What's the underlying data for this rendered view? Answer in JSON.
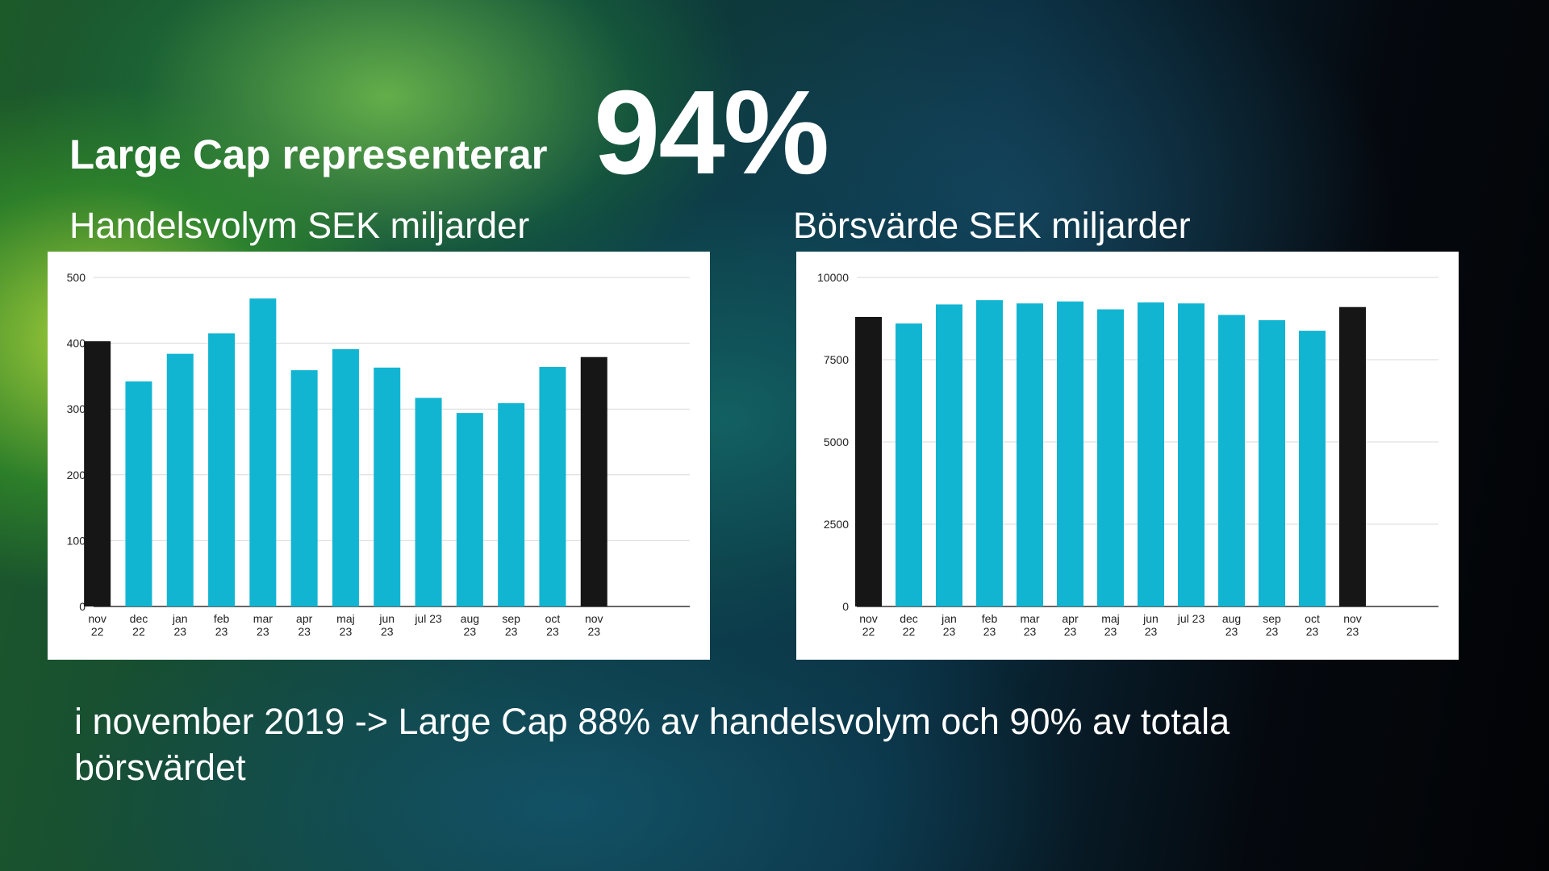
{
  "headline": {
    "prefix": "Large Cap representerar",
    "value": "94%"
  },
  "chart_data": [
    {
      "type": "bar",
      "title": "Handelsvolym SEK miljarder",
      "categories": [
        "nov\n22",
        "dec\n22",
        "jan\n23",
        "feb\n23",
        "mar\n23",
        "apr\n23",
        "maj\n23",
        "jun\n23",
        "jul 23",
        "aug\n23",
        "sep\n23",
        "oct\n23",
        "nov\n23"
      ],
      "values": [
        403,
        342,
        384,
        415,
        468,
        359,
        391,
        363,
        317,
        294,
        309,
        364,
        379
      ],
      "highlight": [
        0,
        12
      ],
      "ylim": [
        0,
        500
      ],
      "yticks": [
        0,
        100,
        200,
        300,
        400,
        500
      ],
      "grid": true,
      "colors": {
        "bar": "#12b5d1",
        "highlight": "#161616"
      }
    },
    {
      "type": "bar",
      "title": "Börsvärde SEK miljarder",
      "categories": [
        "nov\n22",
        "dec\n22",
        "jan\n23",
        "feb\n23",
        "mar\n23",
        "apr\n23",
        "maj\n23",
        "jun\n23",
        "jul 23",
        "aug\n23",
        "sep\n23",
        "oct\n23",
        "nov\n23"
      ],
      "values": [
        8800,
        8600,
        9180,
        9310,
        9210,
        9270,
        9030,
        9240,
        9210,
        8860,
        8700,
        8380,
        9100
      ],
      "highlight": [
        0,
        12
      ],
      "ylim": [
        0,
        10000
      ],
      "yticks": [
        0,
        2500,
        5000,
        7500,
        10000
      ],
      "grid": true,
      "colors": {
        "bar": "#12b5d1",
        "highlight": "#161616"
      }
    }
  ],
  "footer": {
    "text": "i november 2019 -> Large Cap 88% av handelsvolym och 90% av totala börsvärdet"
  }
}
